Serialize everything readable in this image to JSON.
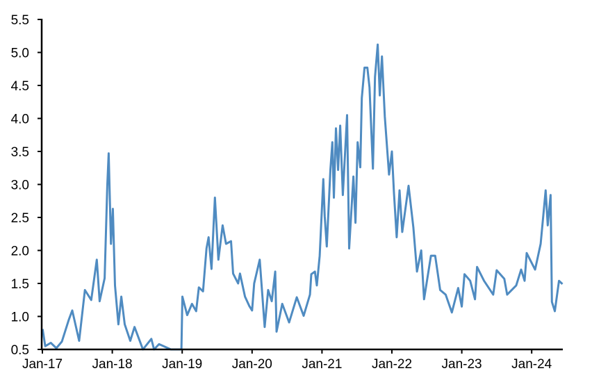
{
  "chart_data": {
    "type": "line",
    "title": "",
    "xlabel": "",
    "ylabel": "",
    "ylim": [
      0.5,
      5.5
    ],
    "yticks": [
      "0.5",
      "1.0",
      "1.5",
      "2.0",
      "2.5",
      "3.0",
      "3.5",
      "4.0",
      "4.5",
      "5.0",
      "5.5"
    ],
    "xlim": [
      "2017-01-01",
      "2024-06-15"
    ],
    "xticks": [
      {
        "label": "Jan-17",
        "date": "2017-01-01"
      },
      {
        "label": "Jan-18",
        "date": "2018-01-01"
      },
      {
        "label": "Jan-19",
        "date": "2019-01-01"
      },
      {
        "label": "Jan-20",
        "date": "2020-01-01"
      },
      {
        "label": "Jan-21",
        "date": "2021-01-01"
      },
      {
        "label": "Jan-22",
        "date": "2022-01-01"
      },
      {
        "label": "Jan-23",
        "date": "2023-01-01"
      },
      {
        "label": "Jan-24",
        "date": "2024-01-01"
      }
    ],
    "grid": false,
    "legend": "none",
    "series": [
      {
        "color": "#4f8bc1",
        "points": [
          [
            "2017-01-02",
            0.81
          ],
          [
            "2017-01-16",
            0.55
          ],
          [
            "2017-02-14",
            0.6
          ],
          [
            "2017-03-15",
            0.52
          ],
          [
            "2017-04-13",
            0.62
          ],
          [
            "2017-05-19",
            0.95
          ],
          [
            "2017-06-06",
            1.09
          ],
          [
            "2017-07-12",
            0.63
          ],
          [
            "2017-08-11",
            1.4
          ],
          [
            "2017-09-13",
            1.25
          ],
          [
            "2017-10-12",
            1.86
          ],
          [
            "2017-10-27",
            1.23
          ],
          [
            "2017-11-22",
            1.58
          ],
          [
            "2017-12-06",
            2.98
          ],
          [
            "2017-12-13",
            3.47
          ],
          [
            "2017-12-25",
            2.1
          ],
          [
            "2018-01-04",
            2.63
          ],
          [
            "2018-01-15",
            1.47
          ],
          [
            "2018-02-02",
            0.88
          ],
          [
            "2018-02-17",
            1.3
          ],
          [
            "2018-03-07",
            0.88
          ],
          [
            "2018-04-05",
            0.63
          ],
          [
            "2018-04-27",
            0.84
          ],
          [
            "2018-06-10",
            0.5
          ],
          [
            "2018-07-24",
            0.66
          ],
          [
            "2018-08-07",
            0.5
          ],
          [
            "2018-09-02",
            0.58
          ],
          [
            "2018-11-03",
            0.5
          ],
          [
            "2018-12-28",
            0.5
          ],
          [
            "2019-01-02",
            1.3
          ],
          [
            "2019-01-27",
            1.02
          ],
          [
            "2019-02-21",
            1.19
          ],
          [
            "2019-03-15",
            1.08
          ],
          [
            "2019-03-29",
            1.44
          ],
          [
            "2019-04-20",
            1.38
          ],
          [
            "2019-05-08",
            2.03
          ],
          [
            "2019-05-19",
            2.2
          ],
          [
            "2019-06-03",
            1.72
          ],
          [
            "2019-06-21",
            2.8
          ],
          [
            "2019-07-09",
            1.86
          ],
          [
            "2019-07-31",
            2.38
          ],
          [
            "2019-08-18",
            2.1
          ],
          [
            "2019-09-13",
            2.14
          ],
          [
            "2019-09-24",
            1.65
          ],
          [
            "2019-10-20",
            1.5
          ],
          [
            "2019-10-30",
            1.65
          ],
          [
            "2019-11-25",
            1.3
          ],
          [
            "2019-12-17",
            1.16
          ],
          [
            "2020-01-01",
            1.09
          ],
          [
            "2020-01-12",
            1.5
          ],
          [
            "2020-02-10",
            1.86
          ],
          [
            "2020-03-07",
            0.84
          ],
          [
            "2020-03-25",
            1.4
          ],
          [
            "2020-04-13",
            1.23
          ],
          [
            "2020-05-01",
            1.68
          ],
          [
            "2020-05-08",
            0.77
          ],
          [
            "2020-06-07",
            1.19
          ],
          [
            "2020-07-13",
            0.91
          ],
          [
            "2020-08-22",
            1.29
          ],
          [
            "2020-09-27",
            1.01
          ],
          [
            "2020-10-30",
            1.33
          ],
          [
            "2020-11-06",
            1.64
          ],
          [
            "2020-11-25",
            1.68
          ],
          [
            "2020-12-05",
            1.47
          ],
          [
            "2020-12-20",
            1.92
          ],
          [
            "2021-01-08",
            3.08
          ],
          [
            "2021-01-15",
            2.52
          ],
          [
            "2021-01-26",
            2.06
          ],
          [
            "2021-02-14",
            3.22
          ],
          [
            "2021-02-24",
            3.64
          ],
          [
            "2021-03-04",
            2.8
          ],
          [
            "2021-03-15",
            3.85
          ],
          [
            "2021-03-26",
            3.22
          ],
          [
            "2021-04-06",
            3.89
          ],
          [
            "2021-04-20",
            2.84
          ],
          [
            "2021-05-12",
            4.05
          ],
          [
            "2021-05-23",
            2.03
          ],
          [
            "2021-06-14",
            3.12
          ],
          [
            "2021-06-25",
            2.42
          ],
          [
            "2021-07-06",
            3.64
          ],
          [
            "2021-07-20",
            3.26
          ],
          [
            "2021-07-28",
            4.31
          ],
          [
            "2021-08-11",
            4.77
          ],
          [
            "2021-08-26",
            4.77
          ],
          [
            "2021-09-06",
            4.47
          ],
          [
            "2021-09-24",
            3.24
          ],
          [
            "2021-10-05",
            4.63
          ],
          [
            "2021-10-19",
            5.12
          ],
          [
            "2021-10-30",
            4.35
          ],
          [
            "2021-11-10",
            4.94
          ],
          [
            "2021-11-25",
            4.03
          ],
          [
            "2021-12-17",
            3.15
          ],
          [
            "2022-01-01",
            3.5
          ],
          [
            "2022-01-12",
            2.87
          ],
          [
            "2022-01-26",
            2.2
          ],
          [
            "2022-02-10",
            2.91
          ],
          [
            "2022-02-24",
            2.28
          ],
          [
            "2022-03-29",
            2.98
          ],
          [
            "2022-04-23",
            2.35
          ],
          [
            "2022-05-12",
            1.68
          ],
          [
            "2022-06-03",
            2.0
          ],
          [
            "2022-06-18",
            1.26
          ],
          [
            "2022-07-24",
            1.92
          ],
          [
            "2022-08-15",
            1.92
          ],
          [
            "2022-09-10",
            1.4
          ],
          [
            "2022-10-09",
            1.33
          ],
          [
            "2022-11-10",
            1.06
          ],
          [
            "2022-12-13",
            1.43
          ],
          [
            "2023-01-01",
            1.15
          ],
          [
            "2023-01-15",
            1.64
          ],
          [
            "2023-02-14",
            1.54
          ],
          [
            "2023-03-11",
            1.26
          ],
          [
            "2023-03-22",
            1.75
          ],
          [
            "2023-04-27",
            1.54
          ],
          [
            "2023-06-14",
            1.33
          ],
          [
            "2023-07-02",
            1.7
          ],
          [
            "2023-08-11",
            1.57
          ],
          [
            "2023-08-26",
            1.33
          ],
          [
            "2023-10-12",
            1.47
          ],
          [
            "2023-11-07",
            1.71
          ],
          [
            "2023-11-25",
            1.54
          ],
          [
            "2023-12-06",
            1.96
          ],
          [
            "2024-01-19",
            1.71
          ],
          [
            "2024-02-17",
            2.1
          ],
          [
            "2024-03-14",
            2.91
          ],
          [
            "2024-03-25",
            2.38
          ],
          [
            "2024-04-09",
            2.84
          ],
          [
            "2024-04-16",
            1.22
          ],
          [
            "2024-05-01",
            1.08
          ],
          [
            "2024-05-23",
            1.54
          ],
          [
            "2024-06-10",
            1.49
          ]
        ]
      }
    ]
  }
}
